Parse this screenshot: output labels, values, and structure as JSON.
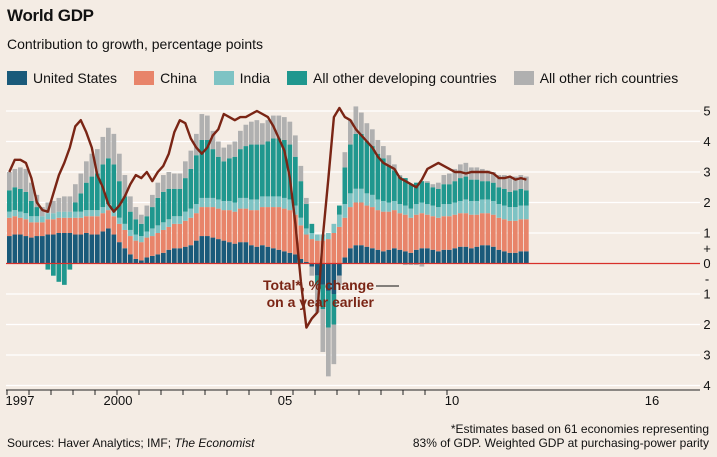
{
  "title": "World GDP",
  "subtitle": "Contribution to growth, percentage points",
  "legend": [
    {
      "label": "United States",
      "color": "#1a5a7a"
    },
    {
      "label": "China",
      "color": "#e8846a"
    },
    {
      "label": "India",
      "color": "#7ec3c4"
    },
    {
      "label": "All other developing countries",
      "color": "#1f978e"
    },
    {
      "label": "All other rich countries",
      "color": "#b0b0b0"
    }
  ],
  "footer": {
    "sources_prefix": "Sources: Haver Analytics; IMF; ",
    "sources_italic": "The Economist",
    "note_line1": "*Estimates based on 61 economies representing",
    "note_line2": "83% of GDP. Weighted GDP at purchasing-power parity"
  },
  "annotation": {
    "line1": "Total*, % change",
    "line2": "on a year earlier"
  },
  "chart_data": {
    "type": "bar",
    "stacked": true,
    "frequency": "quarterly",
    "x_start": "1997 Q1",
    "x_tick_labels": [
      "1997",
      "2000",
      "05",
      "10",
      "16"
    ],
    "y_tick_labels": [
      "5",
      "4",
      "3",
      "2",
      "1",
      "+",
      "0",
      "-",
      "1",
      "2",
      "3",
      "4"
    ],
    "ylim": [
      -4,
      5
    ],
    "series": [
      {
        "name": "United States",
        "color": "#1a5a7a",
        "values": [
          0.9,
          0.95,
          0.95,
          0.9,
          0.85,
          0.9,
          0.9,
          0.95,
          0.95,
          1.0,
          1.0,
          1.0,
          0.95,
          0.95,
          1.0,
          0.95,
          0.95,
          1.05,
          1.15,
          0.95,
          0.7,
          0.5,
          0.3,
          0.15,
          0.1,
          0.2,
          0.25,
          0.3,
          0.35,
          0.45,
          0.5,
          0.5,
          0.55,
          0.6,
          0.75,
          0.9,
          0.9,
          0.85,
          0.8,
          0.75,
          0.7,
          0.65,
          0.7,
          0.7,
          0.6,
          0.55,
          0.6,
          0.55,
          0.5,
          0.45,
          0.4,
          0.35,
          0.3,
          0.15,
          0.05,
          -0.1,
          -0.4,
          -0.7,
          -0.9,
          -1.0,
          -0.4,
          0.2,
          0.5,
          0.6,
          0.6,
          0.55,
          0.5,
          0.45,
          0.4,
          0.45,
          0.5,
          0.45,
          0.4,
          0.35,
          0.45,
          0.5,
          0.5,
          0.45,
          0.4,
          0.45,
          0.45,
          0.5,
          0.55,
          0.55,
          0.5,
          0.55,
          0.6,
          0.6,
          0.55,
          0.45,
          0.4,
          0.35,
          0.35,
          0.4,
          0.4
        ]
      },
      {
        "name": "China",
        "color": "#e8846a",
        "values": [
          0.6,
          0.6,
          0.55,
          0.55,
          0.5,
          0.45,
          0.45,
          0.5,
          0.5,
          0.5,
          0.5,
          0.5,
          0.55,
          0.55,
          0.55,
          0.6,
          0.6,
          0.6,
          0.6,
          0.6,
          0.6,
          0.6,
          0.6,
          0.6,
          0.6,
          0.65,
          0.65,
          0.7,
          0.75,
          0.75,
          0.8,
          0.8,
          0.85,
          0.9,
          0.9,
          0.95,
          0.95,
          1.0,
          1.0,
          1.0,
          1.05,
          1.05,
          1.1,
          1.1,
          1.15,
          1.2,
          1.25,
          1.3,
          1.35,
          1.4,
          1.4,
          1.4,
          1.3,
          1.1,
          0.9,
          0.8,
          0.75,
          0.75,
          0.8,
          1.0,
          1.2,
          1.3,
          1.35,
          1.4,
          1.4,
          1.35,
          1.35,
          1.3,
          1.3,
          1.25,
          1.25,
          1.2,
          1.2,
          1.15,
          1.15,
          1.15,
          1.1,
          1.1,
          1.1,
          1.1,
          1.1,
          1.1,
          1.1,
          1.1,
          1.1,
          1.05,
          1.05,
          1.05,
          1.05,
          1.05,
          1.05,
          1.05,
          1.05,
          1.05,
          1.05
        ]
      },
      {
        "name": "India",
        "color": "#7ec3c4",
        "values": [
          0.2,
          0.2,
          0.2,
          0.2,
          0.2,
          0.2,
          0.2,
          0.2,
          0.2,
          0.2,
          0.2,
          0.2,
          0.2,
          0.2,
          0.2,
          0.2,
          0.2,
          0.2,
          0.2,
          0.2,
          0.2,
          0.2,
          0.2,
          0.2,
          0.2,
          0.2,
          0.25,
          0.25,
          0.25,
          0.25,
          0.25,
          0.25,
          0.3,
          0.3,
          0.3,
          0.3,
          0.3,
          0.3,
          0.3,
          0.3,
          0.3,
          0.3,
          0.35,
          0.35,
          0.35,
          0.35,
          0.35,
          0.35,
          0.35,
          0.35,
          0.35,
          0.35,
          0.3,
          0.25,
          0.2,
          0.2,
          0.2,
          0.2,
          0.2,
          0.3,
          0.4,
          0.45,
          0.45,
          0.45,
          0.45,
          0.4,
          0.4,
          0.35,
          0.35,
          0.3,
          0.3,
          0.3,
          0.3,
          0.3,
          0.35,
          0.35,
          0.35,
          0.35,
          0.35,
          0.4,
          0.4,
          0.4,
          0.4,
          0.45,
          0.45,
          0.45,
          0.45,
          0.45,
          0.45,
          0.45,
          0.45,
          0.45,
          0.45,
          0.45,
          0.45
        ]
      },
      {
        "name": "All other developing countries",
        "color": "#1f978e",
        "values": [
          0.7,
          0.75,
          0.75,
          0.7,
          0.5,
          0.3,
          0.0,
          -0.2,
          -0.4,
          -0.6,
          -0.7,
          -0.2,
          0.3,
          0.6,
          0.9,
          1.1,
          1.2,
          1.4,
          1.5,
          1.5,
          1.2,
          0.9,
          0.6,
          0.5,
          0.4,
          0.5,
          0.7,
          0.9,
          1.0,
          1.0,
          0.9,
          0.9,
          1.1,
          1.3,
          1.6,
          1.9,
          1.9,
          1.6,
          1.4,
          1.3,
          1.4,
          1.5,
          1.6,
          1.7,
          1.8,
          1.8,
          1.7,
          1.8,
          1.9,
          1.9,
          1.9,
          1.8,
          1.6,
          1.2,
          0.8,
          0.3,
          -0.3,
          -0.8,
          -1.2,
          -1.0,
          0.3,
          1.2,
          1.6,
          1.8,
          1.8,
          1.7,
          1.6,
          1.5,
          1.4,
          1.2,
          1.0,
          0.9,
          0.9,
          0.8,
          0.7,
          0.7,
          0.7,
          0.6,
          0.6,
          0.65,
          0.65,
          0.7,
          0.75,
          0.75,
          0.7,
          0.7,
          0.6,
          0.6,
          0.6,
          0.55,
          0.55,
          0.5,
          0.55,
          0.55,
          0.5
        ]
      },
      {
        "name": "All other rich countries",
        "color": "#b0b0b0",
        "values": [
          0.6,
          0.6,
          0.7,
          0.75,
          0.6,
          0.4,
          0.3,
          0.35,
          0.4,
          0.45,
          0.5,
          0.5,
          0.6,
          0.65,
          0.7,
          0.75,
          0.8,
          0.9,
          1.0,
          1.0,
          0.9,
          0.7,
          0.5,
          0.4,
          0.3,
          0.35,
          0.4,
          0.5,
          0.55,
          0.55,
          0.5,
          0.5,
          0.55,
          0.6,
          0.7,
          0.85,
          0.8,
          0.6,
          0.5,
          0.45,
          0.45,
          0.5,
          0.6,
          0.7,
          0.75,
          0.8,
          0.7,
          0.7,
          0.75,
          0.75,
          0.75,
          0.75,
          0.7,
          0.5,
          0.2,
          -0.3,
          -0.9,
          -1.4,
          -1.6,
          -1.3,
          -0.3,
          0.5,
          0.8,
          0.9,
          0.7,
          0.6,
          0.55,
          0.45,
          0.4,
          0.35,
          0.2,
          0.05,
          -0.05,
          -0.05,
          -0.05,
          -0.1,
          0.05,
          0.1,
          0.2,
          0.3,
          0.35,
          0.4,
          0.45,
          0.45,
          0.4,
          0.4,
          0.4,
          0.35,
          0.35,
          0.4,
          0.45,
          0.45,
          0.45,
          0.45,
          0.45
        ]
      }
    ],
    "total": [
      3.0,
      3.4,
      3.4,
      3.3,
      2.8,
      2.0,
      1.75,
      1.7,
      2.3,
      2.9,
      3.3,
      3.8,
      4.5,
      4.7,
      4.3,
      3.8,
      2.9,
      2.5,
      1.95,
      1.7,
      1.9,
      2.2,
      2.6,
      2.9,
      2.8,
      3.0,
      2.7,
      3.0,
      3.2,
      3.6,
      4.3,
      4.7,
      4.6,
      4.1,
      3.8,
      3.6,
      3.8,
      4.2,
      4.4,
      4.9,
      4.8,
      4.7,
      4.8,
      4.8,
      4.9,
      5.0,
      4.9,
      4.8,
      4.5,
      4.1,
      3.7,
      2.8,
      1.3,
      -0.6,
      -2.1,
      -1.8,
      -1.6,
      0.9,
      2.8,
      4.8,
      5.1,
      4.8,
      4.7,
      4.4,
      4.2,
      4.0,
      3.8,
      3.5,
      3.3,
      3.2,
      3.1,
      2.8,
      2.7,
      2.6,
      2.5,
      2.75,
      3.1,
      3.2,
      3.3,
      3.2,
      3.1,
      3.0,
      3.0,
      2.95,
      3.0,
      3.0,
      3.0,
      3.0,
      2.95,
      2.8,
      2.8,
      2.85,
      2.75,
      2.8,
      2.75
    ]
  }
}
